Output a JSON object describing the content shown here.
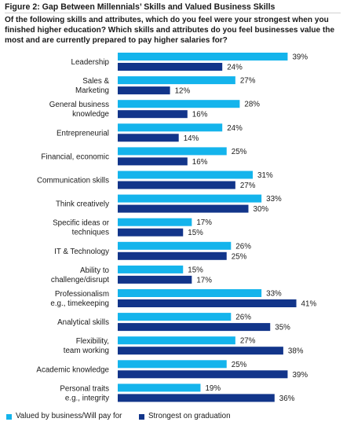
{
  "figure": {
    "title": "Figure 2: Gap Between Millennials’ Skills and Valued Business Skills",
    "subtitle": "Of the following skills and attributes, which do you feel were your strongest when you finished higher education? Which skills and attributes do you feel businesses value the most and are currently prepared to pay higher salaries for?"
  },
  "colors": {
    "valued": "#14b4ec",
    "strongest": "#12358a"
  },
  "chart_data": {
    "type": "bar",
    "orientation": "horizontal",
    "grid": false,
    "legend_placement": "bottom",
    "value_suffix": "%",
    "categories": [
      [
        "Leadership"
      ],
      [
        "Sales &",
        "Marketing"
      ],
      [
        "General business",
        "knowledge"
      ],
      [
        "Entrepreneurial"
      ],
      [
        "Financial, economic"
      ],
      [
        "Communication skills"
      ],
      [
        "Think creatively"
      ],
      [
        "Specific ideas or",
        "techniques"
      ],
      [
        "IT & Technology"
      ],
      [
        "Ability to",
        "challenge/disrupt"
      ],
      [
        "Professionalism",
        "e.g., timekeeping"
      ],
      [
        "Analytical skills"
      ],
      [
        "Flexibility,",
        "team working"
      ],
      [
        "Academic knowledge"
      ],
      [
        "Personal traits",
        "e.g., integrity"
      ]
    ],
    "series": [
      {
        "name": "Valued by business/Will pay for",
        "values": [
          39,
          27,
          28,
          24,
          25,
          31,
          33,
          17,
          26,
          15,
          33,
          26,
          27,
          25,
          19
        ]
      },
      {
        "name": "Strongest on graduation",
        "values": [
          24,
          12,
          16,
          14,
          16,
          27,
          30,
          15,
          25,
          17,
          41,
          35,
          38,
          39,
          36
        ]
      }
    ]
  }
}
